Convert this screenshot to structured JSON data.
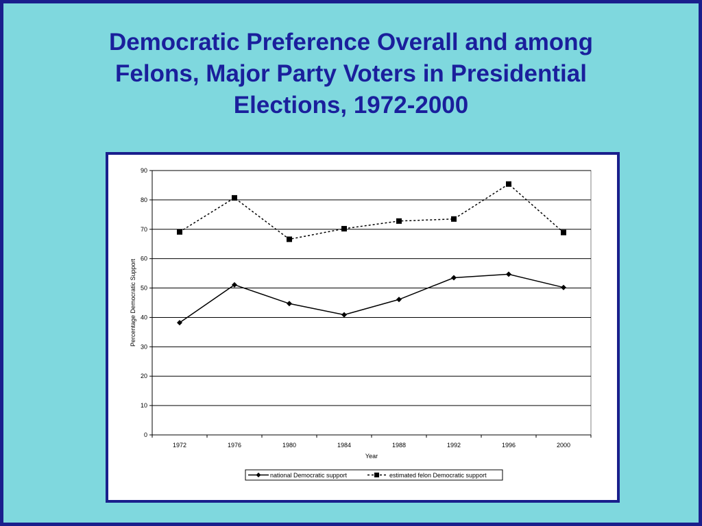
{
  "slide": {
    "title_lines": [
      "Democratic Preference Overall and among",
      "Felons, Major Party Voters in Presidential",
      "Elections, 1972-2000"
    ]
  },
  "colors": {
    "background": "#7fd8de",
    "border": "#1a1f8c",
    "title": "#1a1f9c",
    "series": "#000000"
  },
  "chart_data": {
    "type": "line",
    "title": "",
    "xlabel": "Year",
    "ylabel": "Percentage Democratic Support",
    "categories": [
      "1972",
      "1976",
      "1980",
      "1984",
      "1988",
      "1992",
      "1996",
      "2000"
    ],
    "ylim": [
      0,
      90
    ],
    "yticks": [
      0,
      10,
      20,
      30,
      40,
      50,
      60,
      70,
      80,
      90
    ],
    "grid": true,
    "legend_position": "bottom",
    "series": [
      {
        "name": "national Democratic support",
        "style": "solid",
        "marker": "diamond",
        "values": [
          38.2,
          51.1,
          44.7,
          40.9,
          46.1,
          53.5,
          54.7,
          50.2
        ]
      },
      {
        "name": "estimated felon Democratic support",
        "style": "dashed",
        "marker": "square",
        "values": [
          69.1,
          80.7,
          66.6,
          70.2,
          72.8,
          73.5,
          85.4,
          68.9
        ]
      }
    ]
  }
}
